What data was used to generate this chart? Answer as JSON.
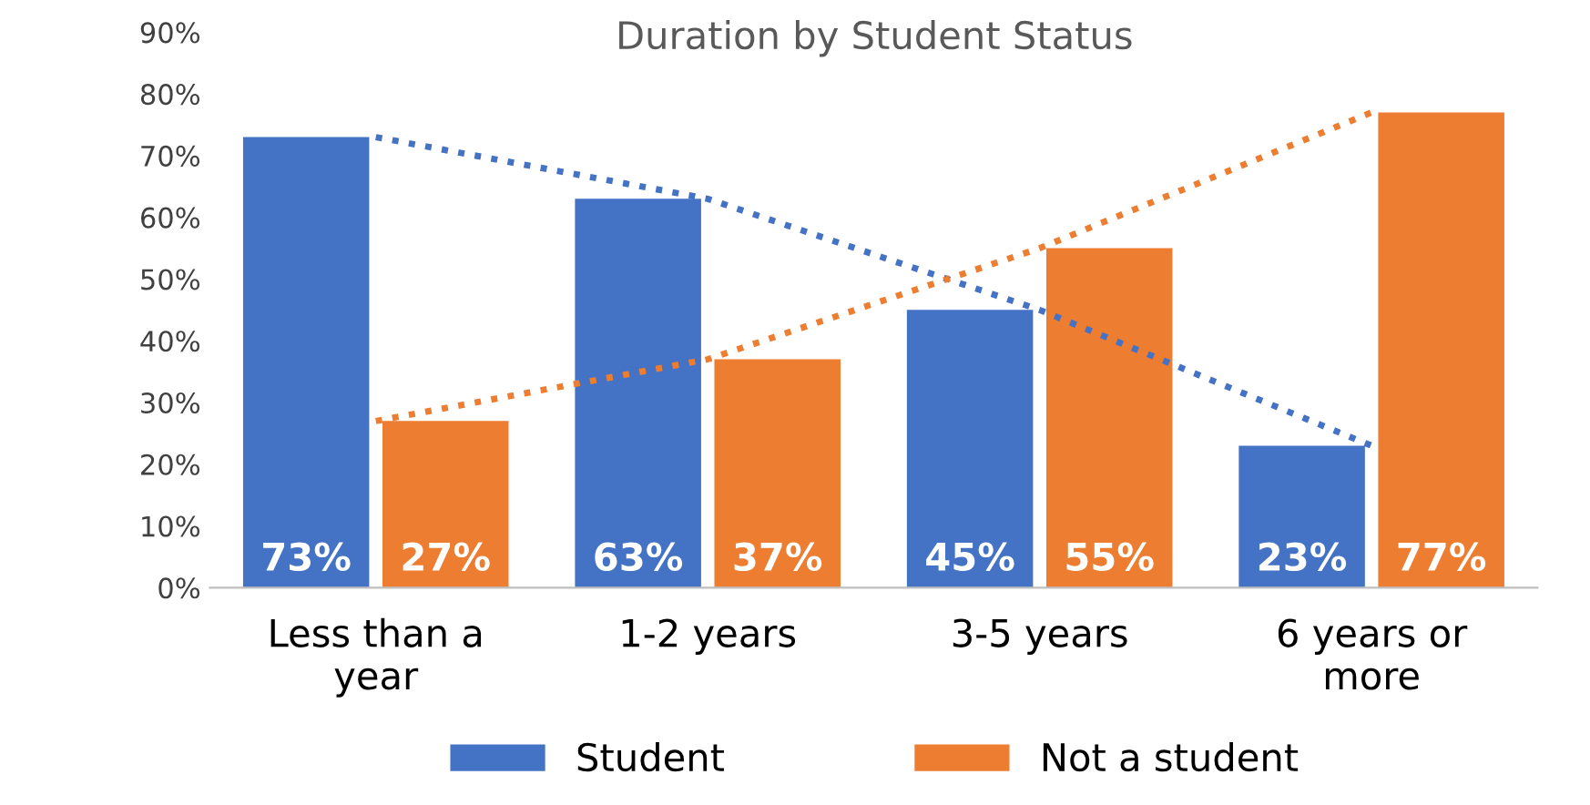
{
  "chart_data": {
    "type": "bar",
    "title": "Duration by Student Status",
    "categories": [
      "Less than a\nyear",
      "1-2 years",
      "3-5 years",
      "6 years or\nmore"
    ],
    "series": [
      {
        "name": "Student",
        "color": "#4472c4",
        "values": [
          73,
          63,
          45,
          23
        ],
        "value_labels": [
          "73%",
          "63%",
          "45%",
          "23%"
        ]
      },
      {
        "name": "Not a student",
        "color": "#ed7d31",
        "values": [
          27,
          37,
          55,
          77
        ],
        "value_labels": [
          "27%",
          "37%",
          "55%",
          "77%"
        ]
      },
      {
        "type": "line",
        "color": "#4472c4",
        "values": [
          73,
          63,
          45,
          23
        ],
        "line_style": "dotted"
      },
      {
        "type": "line",
        "color": "#ed7d31",
        "values": [
          27,
          37,
          55,
          77
        ],
        "line_style": "dotted"
      }
    ],
    "ylim": [
      0,
      90
    ],
    "yticks": [
      {
        "value": 0,
        "label": "0%"
      },
      {
        "value": 10,
        "label": "10%"
      },
      {
        "value": 20,
        "label": "20%"
      },
      {
        "value": 30,
        "label": "30%"
      },
      {
        "value": 40,
        "label": "40%"
      },
      {
        "value": 50,
        "label": "50%"
      },
      {
        "value": 60,
        "label": "60%"
      },
      {
        "value": 70,
        "label": "70%"
      },
      {
        "value": 80,
        "label": "80%"
      },
      {
        "value": 90,
        "label": "90%"
      }
    ],
    "grid": false,
    "legend": "bottom"
  }
}
